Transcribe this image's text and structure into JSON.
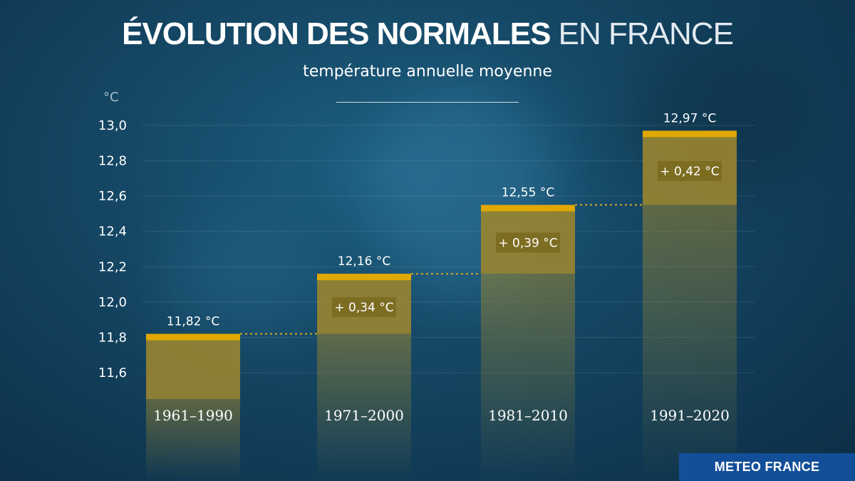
{
  "title_strong": "ÉVOLUTION DES NORMALES",
  "title_light": "EN FRANCE",
  "subtitle": "température annuelle moyenne",
  "logo": "METEO FRANCE",
  "colors": {
    "bar": "#9a8530",
    "cap": "#e0a800",
    "label_box": "#7a6a1e",
    "connector": "#d8a820"
  },
  "chart_data": {
    "type": "bar",
    "ylabel": "°C",
    "ylim": [
      11.45,
      13.05
    ],
    "yticks": [
      11.6,
      11.8,
      12.0,
      12.2,
      12.4,
      12.6,
      12.8,
      13.0
    ],
    "ytick_labels": [
      "11,6",
      "11,8",
      "12,0",
      "12,2",
      "12,4",
      "12,6",
      "12,8",
      "13,0"
    ],
    "grid": true,
    "categories": [
      "1961–1990",
      "1971–2000",
      "1981–2010",
      "1991–2020"
    ],
    "values": [
      11.82,
      12.16,
      12.55,
      12.97
    ],
    "value_labels": [
      "11,82 °C",
      "12,16 °C",
      "12,55 °C",
      "12,97 °C"
    ],
    "increments": [
      null,
      0.34,
      0.39,
      0.42
    ],
    "increment_labels": [
      "",
      "+ 0,34 °C",
      "+ 0,39 °C",
      "+ 0,42 °C"
    ]
  }
}
